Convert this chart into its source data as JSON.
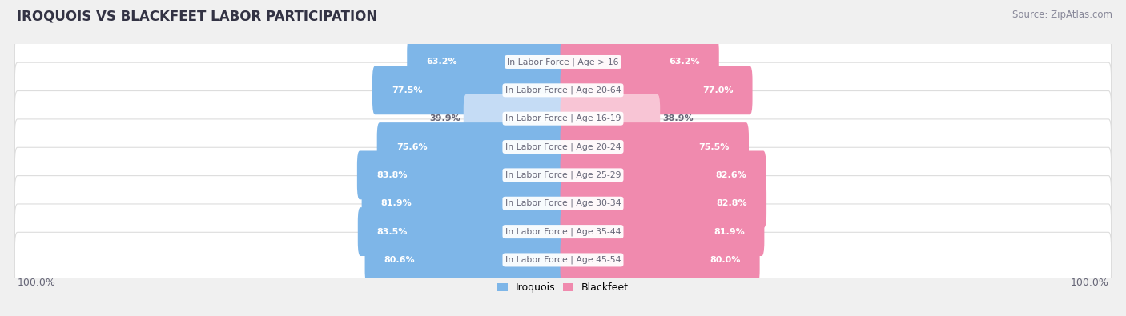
{
  "title": "IROQUOIS VS BLACKFEET LABOR PARTICIPATION",
  "source": "Source: ZipAtlas.com",
  "categories": [
    "In Labor Force | Age > 16",
    "In Labor Force | Age 20-64",
    "In Labor Force | Age 16-19",
    "In Labor Force | Age 20-24",
    "In Labor Force | Age 25-29",
    "In Labor Force | Age 30-34",
    "In Labor Force | Age 35-44",
    "In Labor Force | Age 45-54"
  ],
  "iroquois": [
    63.2,
    77.5,
    39.9,
    75.6,
    83.8,
    81.9,
    83.5,
    80.6
  ],
  "blackfeet": [
    63.2,
    77.0,
    38.9,
    75.5,
    82.6,
    82.8,
    81.9,
    80.0
  ],
  "iroquois_color": "#7EB6E8",
  "iroquois_color_light": "#C5DCF5",
  "blackfeet_color": "#F08AAE",
  "blackfeet_color_light": "#F8C5D5",
  "label_color_dark": "#666677",
  "bg_color": "#f0f0f0",
  "row_bg_color": "#ffffff",
  "row_border_color": "#dddddd",
  "title_color": "#333344",
  "source_color": "#888899",
  "legend_labels": [
    "Iroquois",
    "Blackfeet"
  ],
  "bottom_label": "100.0%",
  "low_threshold": 50.0
}
